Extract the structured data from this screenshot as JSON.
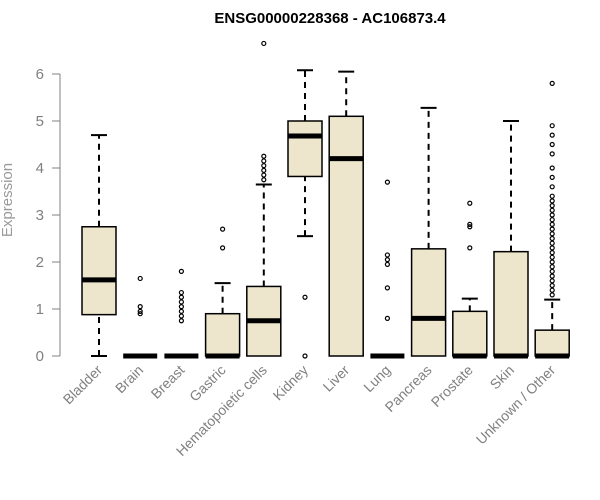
{
  "chart_data": {
    "type": "boxplot",
    "title": "ENSG00000228368 - AC106873.4",
    "ylabel": "Expression",
    "xlabel": "",
    "ylim": [
      0,
      6.7
    ],
    "yticks": [
      "0",
      "1",
      "2",
      "3",
      "4",
      "5",
      "6"
    ],
    "grid": false,
    "colors": {
      "box_fill": "#ede6cc",
      "stroke": "#000000",
      "axis": "#808080",
      "title": "#000000"
    },
    "categories": [
      "Bladder",
      "Brain",
      "Breast",
      "Gastric",
      "Hematopoietic cells",
      "Kidney",
      "Liver",
      "Lung",
      "Pancreas",
      "Prostate",
      "Skin",
      "Unknown / Other"
    ],
    "boxes": [
      {
        "name": "Bladder",
        "min": 0,
        "q1": 0.88,
        "median": 1.62,
        "q3": 2.75,
        "max": 4.7,
        "outliers": []
      },
      {
        "name": "Brain",
        "min": 0,
        "q1": 0,
        "median": 0,
        "q3": 0,
        "max": 0,
        "outliers": [
          0.9,
          0.95,
          1.05,
          1.65
        ]
      },
      {
        "name": "Breast",
        "min": 0,
        "q1": 0,
        "median": 0,
        "q3": 0,
        "max": 0,
        "outliers": [
          0.75,
          0.85,
          0.95,
          1.05,
          1.15,
          1.25,
          1.35,
          1.8
        ]
      },
      {
        "name": "Gastric",
        "min": 0,
        "q1": 0,
        "median": 0,
        "q3": 0.9,
        "max": 1.55,
        "outliers": [
          2.3,
          2.7
        ]
      },
      {
        "name": "Hematopoietic cells",
        "min": 0,
        "q1": 0,
        "median": 0.75,
        "q3": 1.48,
        "max": 3.65,
        "outliers": [
          3.75,
          3.85,
          3.95,
          4.05,
          4.15,
          4.25,
          6.65
        ]
      },
      {
        "name": "Kidney",
        "min": 2.55,
        "q1": 3.82,
        "median": 4.68,
        "q3": 5.0,
        "max": 6.08,
        "outliers": [
          0,
          1.25
        ]
      },
      {
        "name": "Liver",
        "min": 0,
        "q1": 0,
        "median": 4.2,
        "q3": 5.1,
        "max": 6.05,
        "outliers": []
      },
      {
        "name": "Lung",
        "min": 0,
        "q1": 0,
        "median": 0,
        "q3": 0,
        "max": 0,
        "outliers": [
          0.8,
          1.45,
          1.95,
          2.05,
          2.15,
          3.7
        ]
      },
      {
        "name": "Pancreas",
        "min": 0,
        "q1": 0,
        "median": 0.8,
        "q3": 2.28,
        "max": 5.28,
        "outliers": []
      },
      {
        "name": "Prostate",
        "min": 0,
        "q1": 0,
        "median": 0,
        "q3": 0.95,
        "max": 1.22,
        "outliers": [
          2.3,
          2.75,
          2.8,
          3.25
        ]
      },
      {
        "name": "Skin",
        "min": 0,
        "q1": 0,
        "median": 0,
        "q3": 2.22,
        "max": 5.0,
        "outliers": []
      },
      {
        "name": "Unknown / Other",
        "min": 0,
        "q1": 0,
        "median": 0,
        "q3": 0.55,
        "max": 1.2,
        "outliers": [
          1.3,
          1.4,
          1.5,
          1.6,
          1.7,
          1.8,
          1.9,
          2.0,
          2.1,
          2.2,
          2.3,
          2.4,
          2.5,
          2.6,
          2.7,
          2.8,
          2.9,
          3.0,
          3.1,
          3.2,
          3.3,
          3.4,
          3.6,
          3.8,
          4.0,
          4.3,
          4.5,
          4.7,
          4.9,
          5.8
        ]
      }
    ]
  }
}
